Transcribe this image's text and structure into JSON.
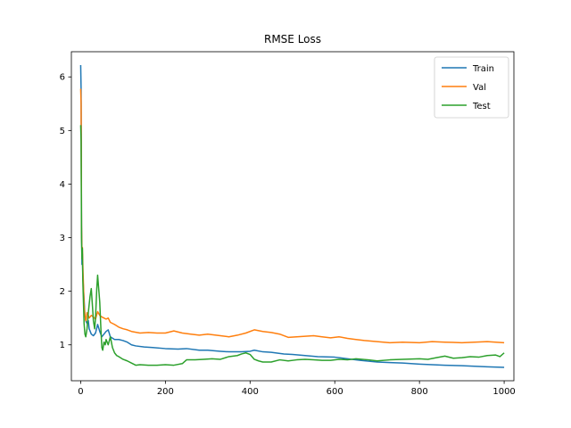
{
  "chart_data": {
    "type": "line",
    "title": "RMSE Loss",
    "xlabel": "",
    "ylabel": "",
    "xlim": [
      -22,
      1023
    ],
    "ylim": [
      0.33,
      6.47
    ],
    "xticks": [
      0,
      200,
      400,
      600,
      800,
      1000
    ],
    "yticks": [
      1,
      2,
      3,
      4,
      5,
      6
    ],
    "grid": false,
    "legend_position": "top-right",
    "series": [
      {
        "name": "Train",
        "color": "#1f77b4",
        "points": [
          [
            0,
            6.22
          ],
          [
            1,
            5.75
          ],
          [
            2,
            3.2
          ],
          [
            3,
            2.5
          ],
          [
            4,
            2.7
          ],
          [
            5,
            2.3
          ],
          [
            8,
            1.85
          ],
          [
            10,
            1.55
          ],
          [
            12,
            1.45
          ],
          [
            15,
            1.4
          ],
          [
            18,
            1.45
          ],
          [
            20,
            1.3
          ],
          [
            25,
            1.2
          ],
          [
            30,
            1.17
          ],
          [
            35,
            1.22
          ],
          [
            40,
            1.38
          ],
          [
            45,
            1.25
          ],
          [
            50,
            1.15
          ],
          [
            55,
            1.2
          ],
          [
            60,
            1.25
          ],
          [
            65,
            1.28
          ],
          [
            70,
            1.15
          ],
          [
            80,
            1.1
          ],
          [
            90,
            1.1
          ],
          [
            100,
            1.08
          ],
          [
            110,
            1.05
          ],
          [
            120,
            1.0
          ],
          [
            130,
            0.98
          ],
          [
            150,
            0.96
          ],
          [
            170,
            0.95
          ],
          [
            200,
            0.93
          ],
          [
            230,
            0.92
          ],
          [
            250,
            0.93
          ],
          [
            280,
            0.9
          ],
          [
            300,
            0.9
          ],
          [
            330,
            0.88
          ],
          [
            350,
            0.87
          ],
          [
            380,
            0.87
          ],
          [
            400,
            0.88
          ],
          [
            410,
            0.9
          ],
          [
            430,
            0.87
          ],
          [
            450,
            0.86
          ],
          [
            480,
            0.83
          ],
          [
            500,
            0.82
          ],
          [
            530,
            0.8
          ],
          [
            560,
            0.78
          ],
          [
            600,
            0.77
          ],
          [
            630,
            0.74
          ],
          [
            660,
            0.71
          ],
          [
            700,
            0.68
          ],
          [
            730,
            0.67
          ],
          [
            760,
            0.66
          ],
          [
            800,
            0.64
          ],
          [
            830,
            0.63
          ],
          [
            860,
            0.62
          ],
          [
            900,
            0.61
          ],
          [
            930,
            0.6
          ],
          [
            960,
            0.59
          ],
          [
            1000,
            0.58
          ]
        ]
      },
      {
        "name": "Val",
        "color": "#ff7f0e",
        "points": [
          [
            0,
            5.78
          ],
          [
            1,
            5.5
          ],
          [
            2,
            3.2
          ],
          [
            3,
            2.7
          ],
          [
            4,
            2.82
          ],
          [
            5,
            2.5
          ],
          [
            8,
            1.75
          ],
          [
            10,
            1.55
          ],
          [
            12,
            1.45
          ],
          [
            15,
            1.6
          ],
          [
            18,
            1.55
          ],
          [
            20,
            1.5
          ],
          [
            25,
            1.55
          ],
          [
            30,
            1.52
          ],
          [
            35,
            1.48
          ],
          [
            40,
            1.62
          ],
          [
            45,
            1.55
          ],
          [
            50,
            1.52
          ],
          [
            55,
            1.5
          ],
          [
            60,
            1.48
          ],
          [
            65,
            1.5
          ],
          [
            70,
            1.42
          ],
          [
            80,
            1.38
          ],
          [
            90,
            1.33
          ],
          [
            100,
            1.3
          ],
          [
            110,
            1.28
          ],
          [
            120,
            1.25
          ],
          [
            140,
            1.22
          ],
          [
            160,
            1.23
          ],
          [
            180,
            1.22
          ],
          [
            200,
            1.22
          ],
          [
            220,
            1.26
          ],
          [
            240,
            1.22
          ],
          [
            260,
            1.2
          ],
          [
            280,
            1.18
          ],
          [
            300,
            1.2
          ],
          [
            330,
            1.17
          ],
          [
            350,
            1.15
          ],
          [
            370,
            1.18
          ],
          [
            390,
            1.22
          ],
          [
            410,
            1.28
          ],
          [
            430,
            1.25
          ],
          [
            450,
            1.23
          ],
          [
            470,
            1.2
          ],
          [
            490,
            1.14
          ],
          [
            510,
            1.15
          ],
          [
            530,
            1.16
          ],
          [
            550,
            1.17
          ],
          [
            570,
            1.15
          ],
          [
            590,
            1.13
          ],
          [
            610,
            1.15
          ],
          [
            630,
            1.12
          ],
          [
            650,
            1.1
          ],
          [
            670,
            1.08
          ],
          [
            700,
            1.06
          ],
          [
            730,
            1.04
          ],
          [
            760,
            1.05
          ],
          [
            800,
            1.04
          ],
          [
            830,
            1.06
          ],
          [
            860,
            1.05
          ],
          [
            900,
            1.04
          ],
          [
            930,
            1.05
          ],
          [
            960,
            1.06
          ],
          [
            1000,
            1.04
          ]
        ]
      },
      {
        "name": "Test",
        "color": "#2ca02c",
        "points": [
          [
            0,
            5.1
          ],
          [
            1,
            4.8
          ],
          [
            2,
            3.0
          ],
          [
            3,
            2.6
          ],
          [
            4,
            2.8
          ],
          [
            5,
            2.2
          ],
          [
            8,
            1.4
          ],
          [
            10,
            1.2
          ],
          [
            12,
            1.15
          ],
          [
            15,
            1.3
          ],
          [
            18,
            1.6
          ],
          [
            20,
            1.75
          ],
          [
            22,
            1.9
          ],
          [
            25,
            2.05
          ],
          [
            28,
            1.7
          ],
          [
            30,
            1.45
          ],
          [
            33,
            1.3
          ],
          [
            35,
            1.5
          ],
          [
            38,
            2.05
          ],
          [
            40,
            2.3
          ],
          [
            42,
            2.1
          ],
          [
            45,
            1.8
          ],
          [
            48,
            1.25
          ],
          [
            50,
            0.95
          ],
          [
            52,
            0.9
          ],
          [
            55,
            1.05
          ],
          [
            58,
            1.0
          ],
          [
            60,
            1.1
          ],
          [
            65,
            1.0
          ],
          [
            70,
            1.15
          ],
          [
            75,
            0.95
          ],
          [
            80,
            0.85
          ],
          [
            85,
            0.8
          ],
          [
            90,
            0.78
          ],
          [
            100,
            0.73
          ],
          [
            110,
            0.7
          ],
          [
            120,
            0.66
          ],
          [
            130,
            0.62
          ],
          [
            140,
            0.63
          ],
          [
            160,
            0.62
          ],
          [
            180,
            0.62
          ],
          [
            200,
            0.63
          ],
          [
            220,
            0.62
          ],
          [
            240,
            0.65
          ],
          [
            250,
            0.72
          ],
          [
            270,
            0.72
          ],
          [
            290,
            0.73
          ],
          [
            310,
            0.74
          ],
          [
            330,
            0.73
          ],
          [
            350,
            0.78
          ],
          [
            370,
            0.8
          ],
          [
            380,
            0.83
          ],
          [
            390,
            0.85
          ],
          [
            400,
            0.82
          ],
          [
            410,
            0.73
          ],
          [
            420,
            0.7
          ],
          [
            430,
            0.68
          ],
          [
            450,
            0.68
          ],
          [
            470,
            0.72
          ],
          [
            490,
            0.7
          ],
          [
            510,
            0.72
          ],
          [
            530,
            0.73
          ],
          [
            550,
            0.72
          ],
          [
            570,
            0.71
          ],
          [
            590,
            0.71
          ],
          [
            610,
            0.73
          ],
          [
            630,
            0.72
          ],
          [
            650,
            0.74
          ],
          [
            680,
            0.72
          ],
          [
            700,
            0.7
          ],
          [
            730,
            0.72
          ],
          [
            760,
            0.73
          ],
          [
            800,
            0.74
          ],
          [
            820,
            0.73
          ],
          [
            840,
            0.76
          ],
          [
            860,
            0.79
          ],
          [
            880,
            0.75
          ],
          [
            900,
            0.76
          ],
          [
            920,
            0.78
          ],
          [
            940,
            0.77
          ],
          [
            960,
            0.8
          ],
          [
            980,
            0.81
          ],
          [
            990,
            0.78
          ],
          [
            1000,
            0.85
          ]
        ]
      }
    ]
  }
}
